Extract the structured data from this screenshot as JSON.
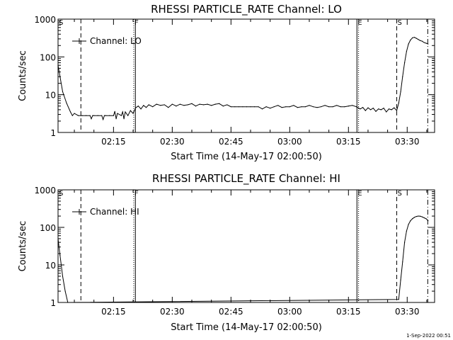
{
  "footer": {
    "text": "1-Sep-2022 00:51"
  },
  "chart_data": [
    {
      "type": "line",
      "title": "RHESSI PARTICLE_RATE Channel: LO",
      "xlabel": "Start Time (14-May-17 02:00:50)",
      "ylabel": "Counts/sec",
      "yscale": "log",
      "xlim": [
        "02:00:50",
        "03:37:00"
      ],
      "ylim": [
        1,
        1000
      ],
      "xticks": [
        "02:15",
        "02:30",
        "02:45",
        "03:00",
        "03:15",
        "03:30"
      ],
      "yticks": [
        "1",
        "10",
        "100",
        "1000"
      ],
      "legend": {
        "label": "Channel: LO",
        "placement": "top-left"
      },
      "markers": [
        {
          "label": "S",
          "time": "02:00:50",
          "style": "solid"
        },
        {
          "label": "",
          "time": "02:06:40",
          "style": "dashed"
        },
        {
          "label": "F",
          "time": "02:20:10",
          "style": "dotted"
        },
        {
          "label": "",
          "time": "02:20:35",
          "style": "solid"
        },
        {
          "label": "E",
          "time": "03:17:10",
          "style": "solid"
        },
        {
          "label": "",
          "time": "03:17:35",
          "style": "dotted"
        },
        {
          "label": "S",
          "time": "03:27:20",
          "style": "dashed"
        },
        {
          "label": "",
          "time": "03:35:15",
          "style": "dashdot"
        }
      ],
      "series": [
        {
          "name": "Channel: LO",
          "x": [
            "02:00:50",
            "02:01:20",
            "02:02:00",
            "02:03:00",
            "02:04:00",
            "02:04:30",
            "02:05:00",
            "02:06:00",
            "02:07:00",
            "02:08:00",
            "02:09:00",
            "02:09:20",
            "02:09:40",
            "02:10:00",
            "02:11:00",
            "02:12:00",
            "02:12:20",
            "02:12:40",
            "02:13:00",
            "02:14:00",
            "02:15:00",
            "02:15:20",
            "02:15:40",
            "02:16:00",
            "02:17:00",
            "02:17:20",
            "02:17:40",
            "02:18:00",
            "02:18:40",
            "02:19:20",
            "02:20:00",
            "02:20:40",
            "02:21:20",
            "02:22:00",
            "02:22:40",
            "02:23:20",
            "02:24:00",
            "02:25:00",
            "02:26:00",
            "02:27:00",
            "02:28:00",
            "02:29:00",
            "02:30:00",
            "02:31:00",
            "02:32:00",
            "02:33:00",
            "02:34:00",
            "02:35:00",
            "02:36:00",
            "02:37:00",
            "02:38:00",
            "02:39:00",
            "02:40:00",
            "02:41:00",
            "02:42:00",
            "02:43:00",
            "02:44:00",
            "02:45:00",
            "02:46:00",
            "02:47:00",
            "02:48:00",
            "02:49:00",
            "02:50:00",
            "02:51:00",
            "02:52:00",
            "02:53:00",
            "02:54:00",
            "02:55:00",
            "02:56:00",
            "02:57:00",
            "02:58:00",
            "02:59:00",
            "03:00:00",
            "03:01:00",
            "03:02:00",
            "03:03:00",
            "03:04:00",
            "03:05:00",
            "03:06:00",
            "03:07:00",
            "03:08:00",
            "03:09:00",
            "03:10:00",
            "03:11:00",
            "03:12:00",
            "03:13:00",
            "03:14:00",
            "03:15:00",
            "03:16:00",
            "03:17:00",
            "03:18:00",
            "03:18:40",
            "03:19:20",
            "03:20:00",
            "03:20:40",
            "03:21:20",
            "03:22:00",
            "03:22:40",
            "03:23:20",
            "03:24:00",
            "03:24:40",
            "03:25:20",
            "03:26:00",
            "03:26:40",
            "03:27:20",
            "03:27:50",
            "03:28:20",
            "03:28:50",
            "03:29:20",
            "03:29:50",
            "03:30:20",
            "03:30:50",
            "03:31:20",
            "03:31:50",
            "03:32:20",
            "03:32:50",
            "03:33:20",
            "03:33:50",
            "03:34:20",
            "03:34:50",
            "03:35:20"
          ],
          "y": [
            60,
            30,
            12,
            6,
            3.5,
            2.8,
            3.2,
            2.8,
            2.8,
            2.8,
            2.8,
            2.3,
            2.8,
            2.8,
            2.8,
            2.8,
            2.2,
            2.8,
            2.8,
            2.8,
            2.8,
            3.6,
            2.3,
            3.2,
            2.8,
            3.5,
            2.3,
            3.5,
            2.8,
            3.8,
            3.2,
            4.5,
            5.0,
            4.2,
            5.2,
            4.6,
            5.4,
            4.8,
            5.6,
            5.2,
            5.4,
            4.6,
            5.6,
            5.0,
            5.6,
            5.2,
            5.4,
            5.8,
            5.0,
            5.6,
            5.4,
            5.6,
            5.2,
            5.6,
            5.8,
            5.0,
            5.4,
            4.8,
            4.8,
            4.8,
            4.8,
            4.8,
            4.8,
            4.8,
            4.8,
            4.2,
            4.8,
            4.4,
            4.8,
            5.2,
            4.6,
            4.8,
            4.8,
            5.2,
            4.6,
            4.8,
            4.8,
            5.2,
            4.8,
            4.6,
            4.8,
            5.2,
            4.8,
            4.8,
            5.2,
            4.8,
            4.8,
            5.0,
            5.2,
            4.8,
            4.2,
            4.6,
            3.8,
            4.5,
            4.0,
            4.4,
            3.6,
            4.2,
            4.0,
            4.4,
            3.5,
            4.2,
            4.0,
            4.5,
            3.8,
            6,
            12,
            30,
            70,
            140,
            220,
            280,
            320,
            330,
            310,
            290,
            270,
            260,
            240,
            230,
            220
          ]
        }
      ]
    },
    {
      "type": "line",
      "title": "RHESSI PARTICLE_RATE Channel: HI",
      "xlabel": "Start Time (14-May-17 02:00:50)",
      "ylabel": "Counts/sec",
      "yscale": "log",
      "xlim": [
        "02:00:50",
        "03:37:00"
      ],
      "ylim": [
        1,
        1000
      ],
      "xticks": [
        "02:15",
        "02:30",
        "02:45",
        "03:00",
        "03:15",
        "03:30"
      ],
      "yticks": [
        "1",
        "10",
        "100",
        "1000"
      ],
      "legend": {
        "label": "Channel: HI",
        "placement": "top-left"
      },
      "markers": [
        {
          "label": "S",
          "time": "02:00:50",
          "style": "solid"
        },
        {
          "label": "",
          "time": "02:06:40",
          "style": "dashed"
        },
        {
          "label": "F",
          "time": "02:20:10",
          "style": "dotted"
        },
        {
          "label": "",
          "time": "02:20:35",
          "style": "solid"
        },
        {
          "label": "E",
          "time": "03:17:10",
          "style": "solid"
        },
        {
          "label": "",
          "time": "03:17:35",
          "style": "dotted"
        },
        {
          "label": "S",
          "time": "03:27:20",
          "style": "dashed"
        },
        {
          "label": "",
          "time": "03:35:15",
          "style": "dashdot"
        }
      ],
      "series": [
        {
          "name": "Channel: HI",
          "x": [
            "02:00:50",
            "02:01:20",
            "02:02:00",
            "02:02:40",
            "02:03:20",
            "03:27:50",
            "03:28:20",
            "03:28:50",
            "03:29:20",
            "03:29:50",
            "03:30:20",
            "03:30:50",
            "03:31:20",
            "03:31:50",
            "03:32:20",
            "03:32:50",
            "03:33:20",
            "03:33:50",
            "03:34:20",
            "03:34:50",
            "03:35:20"
          ],
          "y": [
            50,
            18,
            5,
            2,
            1,
            1.2,
            4,
            12,
            40,
            80,
            120,
            150,
            170,
            185,
            195,
            200,
            198,
            190,
            180,
            170,
            150
          ]
        }
      ]
    }
  ]
}
